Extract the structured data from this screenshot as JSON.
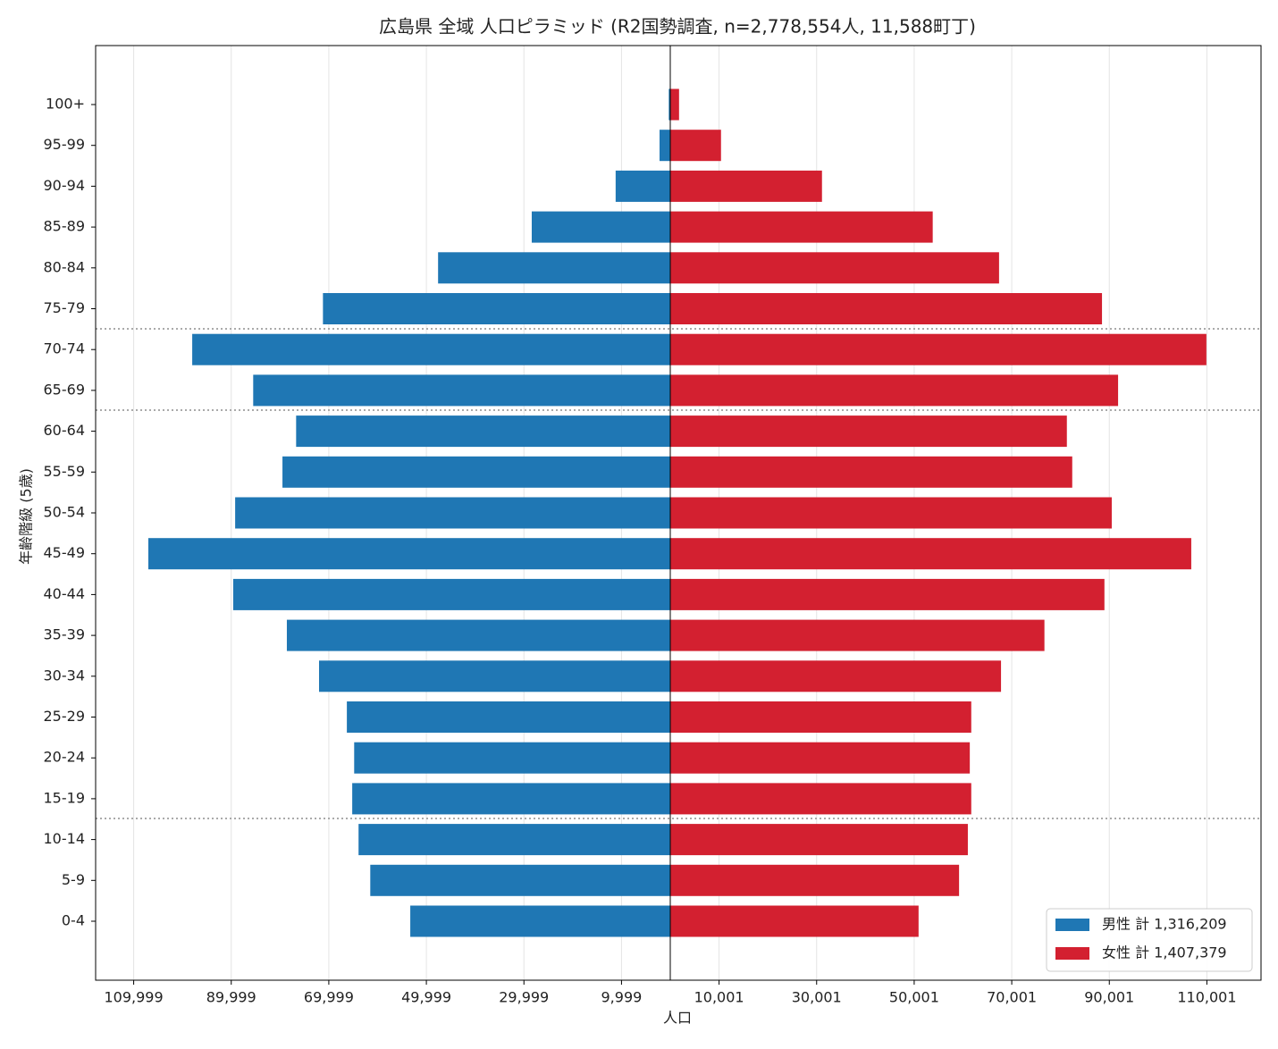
{
  "chart_data": {
    "type": "pyramid",
    "title": "広島県 全域 人口ピラミッド (R2国勢調査, n=2,778,554人, 11,588町丁)",
    "xlabel": "人口",
    "ylabel": "年齢階級 (5歳)",
    "categories": [
      "0-4",
      "5-9",
      "10-14",
      "15-19",
      "20-24",
      "25-29",
      "30-34",
      "35-39",
      "40-44",
      "45-49",
      "50-54",
      "55-59",
      "60-64",
      "65-69",
      "70-74",
      "75-79",
      "80-84",
      "85-89",
      "90-94",
      "95-99",
      "100+"
    ],
    "series": [
      {
        "name": "男性 計 1,316,209",
        "color": "#1f77b4",
        "side": "left",
        "values": [
          53300,
          61500,
          63900,
          65200,
          64800,
          66300,
          72000,
          78600,
          89600,
          107000,
          89200,
          79500,
          76700,
          85500,
          98000,
          71200,
          47600,
          28400,
          11200,
          2200,
          300
        ]
      },
      {
        "name": "女性 計 1,407,379",
        "color": "#d32030",
        "side": "right",
        "values": [
          50900,
          59200,
          61000,
          61700,
          61400,
          61700,
          67800,
          76700,
          89000,
          106800,
          90500,
          82400,
          81300,
          91800,
          109900,
          88500,
          67400,
          53800,
          31100,
          10400,
          1800
        ]
      }
    ],
    "xlim": [
      -117800,
      121100
    ],
    "xticks": [
      {
        "value": -109999,
        "label": "109,999"
      },
      {
        "value": -89999,
        "label": "89,999"
      },
      {
        "value": -69999,
        "label": "69,999"
      },
      {
        "value": -49999,
        "label": "49,999"
      },
      {
        "value": -29999,
        "label": "29,999"
      },
      {
        "value": -9999,
        "label": "9,999"
      },
      {
        "value": 10001,
        "label": "10,001"
      },
      {
        "value": 30001,
        "label": "30,001"
      },
      {
        "value": 50001,
        "label": "50,001"
      },
      {
        "value": 70001,
        "label": "70,001"
      },
      {
        "value": 90001,
        "label": "90,001"
      },
      {
        "value": 110001,
        "label": "110,001"
      }
    ],
    "grid": true,
    "legend": "lower right"
  }
}
